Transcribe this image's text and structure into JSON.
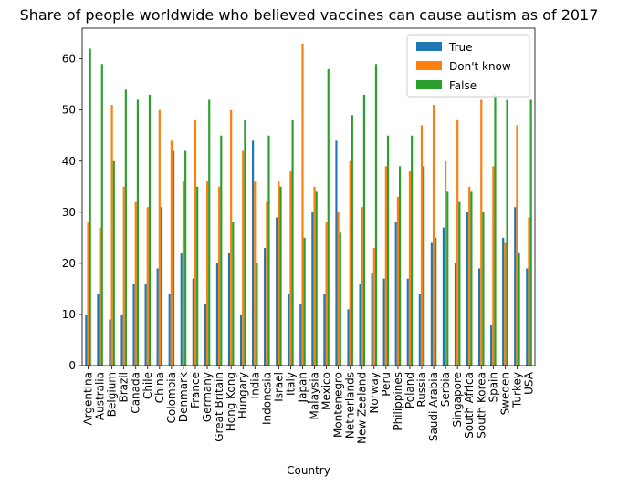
{
  "chart_data": {
    "type": "bar",
    "title": "Share of people worldwide who believed vaccines can cause autism as of 2017",
    "xlabel": "Country",
    "ylabel": "",
    "ylim": [
      0,
      66
    ],
    "yticks": [
      0,
      10,
      20,
      30,
      40,
      50,
      60
    ],
    "legend_position": "top-right",
    "categories": [
      "Argentina",
      "Australia",
      "Belgium",
      "Brazil",
      "Canada",
      "Chile",
      "China",
      "Colombia",
      "Denmark",
      "France",
      "Germany",
      "Great Britain",
      "Hong Kong",
      "Hungary",
      "India",
      "Indonesia",
      "Israel",
      "Italy",
      "Japan",
      "Malaysia",
      "Mexico",
      "Montenegro",
      "Netherlands",
      "New Zealand",
      "Norway",
      "Peru",
      "Philippines",
      "Poland",
      "Russia",
      "Saudi Arabia",
      "Serbia",
      "Singapore",
      "South Africa",
      "South Korea",
      "Spain",
      "Sweden",
      "Turkey",
      "USA"
    ],
    "series": [
      {
        "name": "True",
        "color": "#1f77b4",
        "values": [
          10,
          14,
          9,
          10,
          16,
          16,
          19,
          14,
          22,
          17,
          12,
          20,
          22,
          10,
          44,
          23,
          29,
          14,
          12,
          30,
          14,
          44,
          11,
          16,
          18,
          17,
          28,
          17,
          14,
          24,
          27,
          20,
          30,
          19,
          8,
          25,
          31,
          19
        ]
      },
      {
        "name": "Don't know",
        "color": "#ff7f0e",
        "values": [
          28,
          27,
          51,
          35,
          32,
          31,
          50,
          44,
          36,
          48,
          36,
          35,
          50,
          42,
          36,
          32,
          36,
          38,
          63,
          35,
          28,
          30,
          40,
          31,
          23,
          39,
          33,
          38,
          47,
          51,
          40,
          48,
          35,
          52,
          39,
          24,
          47,
          29
        ]
      },
      {
        "name": "False",
        "color": "#2ca02c",
        "values": [
          62,
          59,
          40,
          54,
          52,
          53,
          31,
          42,
          42,
          35,
          52,
          45,
          28,
          48,
          20,
          45,
          35,
          48,
          25,
          34,
          58,
          26,
          49,
          53,
          59,
          45,
          39,
          45,
          39,
          25,
          34,
          32,
          34,
          30,
          53,
          52,
          22,
          52
        ]
      }
    ]
  }
}
